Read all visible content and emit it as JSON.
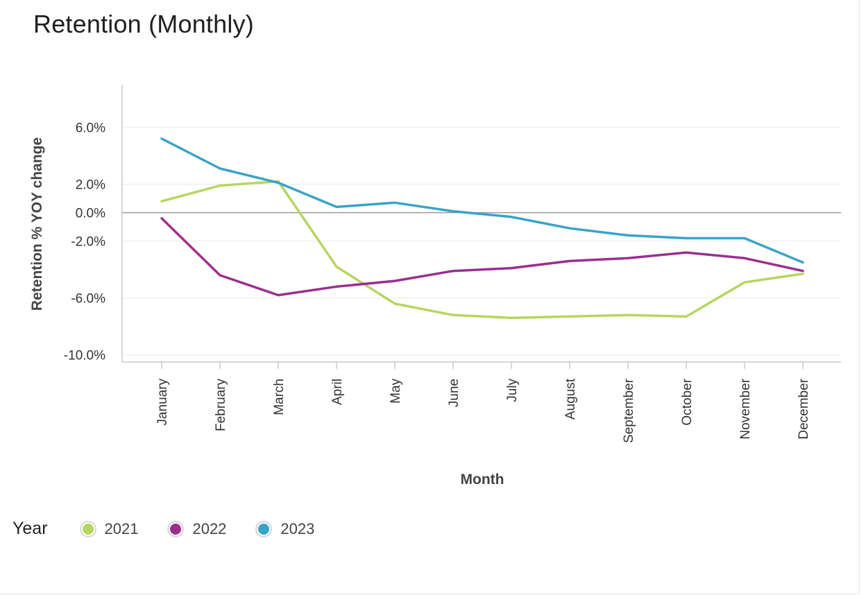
{
  "chart_data": {
    "type": "line",
    "title": "Retention (Monthly)",
    "xlabel": "Month",
    "ylabel": "Retention % YOY change",
    "categories": [
      "January",
      "February",
      "March",
      "April",
      "May",
      "June",
      "July",
      "August",
      "September",
      "October",
      "November",
      "December"
    ],
    "y_ticks": [
      6.0,
      2.0,
      0.0,
      -2.0,
      -6.0,
      -10.0
    ],
    "y_tick_labels": [
      "6.0%",
      "2.0%",
      "0.0%",
      "-2.0%",
      "-6.0%",
      "-10.0%"
    ],
    "ylim": [
      -10.5,
      9.0
    ],
    "grid": true,
    "legend": {
      "title": "Year",
      "placement": "bottom-left"
    },
    "series": [
      {
        "name": "2021",
        "color": "#b5d65f",
        "values": [
          0.8,
          1.9,
          2.2,
          -3.8,
          -6.4,
          -7.2,
          -7.4,
          -7.3,
          -7.2,
          -7.3,
          -4.9,
          -4.3
        ]
      },
      {
        "name": "2022",
        "color": "#9b2f8e",
        "values": [
          -0.4,
          -4.4,
          -5.8,
          -5.2,
          -4.8,
          -4.1,
          -3.9,
          -3.4,
          -3.2,
          -2.8,
          -3.2,
          -4.1
        ]
      },
      {
        "name": "2023",
        "color": "#3aa3c9",
        "values": [
          5.2,
          3.1,
          2.1,
          0.4,
          0.7,
          0.1,
          -0.3,
          -1.1,
          -1.6,
          -1.8,
          -1.8,
          -3.5
        ]
      }
    ]
  }
}
